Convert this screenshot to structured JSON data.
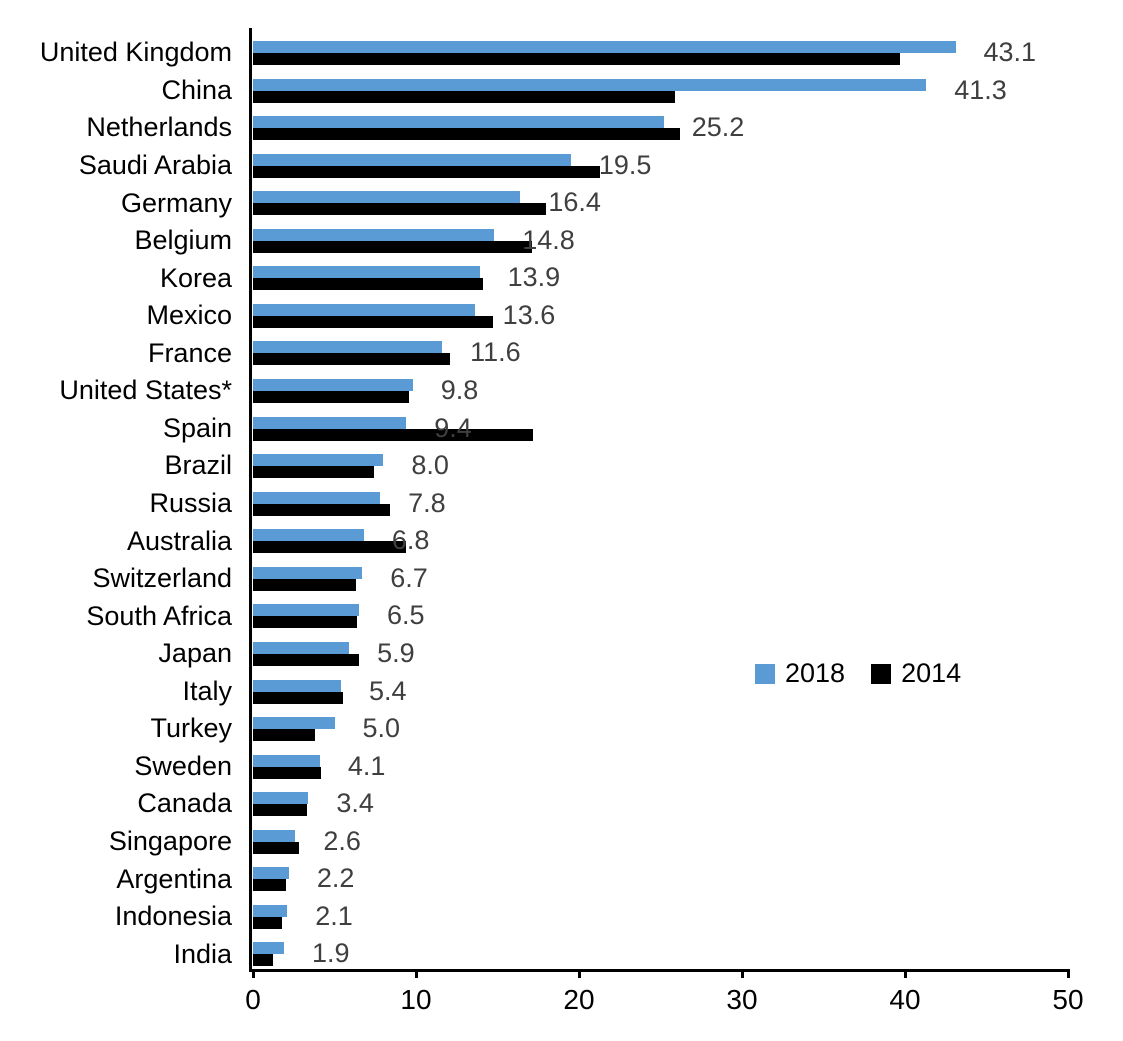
{
  "chart_data": {
    "type": "bar",
    "orientation": "horizontal",
    "categories": [
      "United Kingdom",
      "China",
      "Netherlands",
      "Saudi Arabia",
      "Germany",
      "Belgium",
      "Korea",
      "Mexico",
      "France",
      "United States*",
      "Spain",
      "Brazil",
      "Russia",
      "Australia",
      "Switzerland",
      "South Africa",
      "Japan",
      "Italy",
      "Turkey",
      "Sweden",
      "Canada",
      "Singapore",
      "Argentina",
      "Indonesia",
      "India"
    ],
    "series": [
      {
        "name": "2018",
        "color": "#5B9BD5",
        "values": [
          43.1,
          41.3,
          25.2,
          19.5,
          16.4,
          14.8,
          13.9,
          13.6,
          11.6,
          9.8,
          9.4,
          8.0,
          7.8,
          6.8,
          6.7,
          6.5,
          5.9,
          5.4,
          5.0,
          4.1,
          3.4,
          2.6,
          2.2,
          2.1,
          1.9
        ],
        "data_labels": [
          "43.1",
          "41.3",
          "25.2",
          "19.5",
          "16.4",
          "14.8",
          "13.9",
          "13.6",
          "11.6",
          "9.8",
          "9.4",
          "8.0",
          "7.8",
          "6.8",
          "6.7",
          "6.5",
          "5.9",
          "5.4",
          "5.0",
          "4.1",
          "3.4",
          "2.6",
          "2.2",
          "2.1",
          "1.9"
        ]
      },
      {
        "name": "2014",
        "color": "#000000",
        "values": [
          39.7,
          25.9,
          26.2,
          21.3,
          18.0,
          17.1,
          14.1,
          14.7,
          12.1,
          9.6,
          17.2,
          7.4,
          8.4,
          9.4,
          6.3,
          6.4,
          6.5,
          5.5,
          3.8,
          4.2,
          3.3,
          2.8,
          2.0,
          1.8,
          1.2
        ]
      }
    ],
    "xlim": [
      0,
      50
    ],
    "x_ticks": [
      "0",
      "10",
      "20",
      "30",
      "40",
      "50"
    ],
    "legend": {
      "entries": [
        "2018",
        "2014"
      ],
      "position": "middle-right"
    },
    "value_label_color": "#3f3f3f",
    "axis_color": "#000000",
    "grid": false,
    "title": "",
    "xlabel": "",
    "ylabel": ""
  }
}
